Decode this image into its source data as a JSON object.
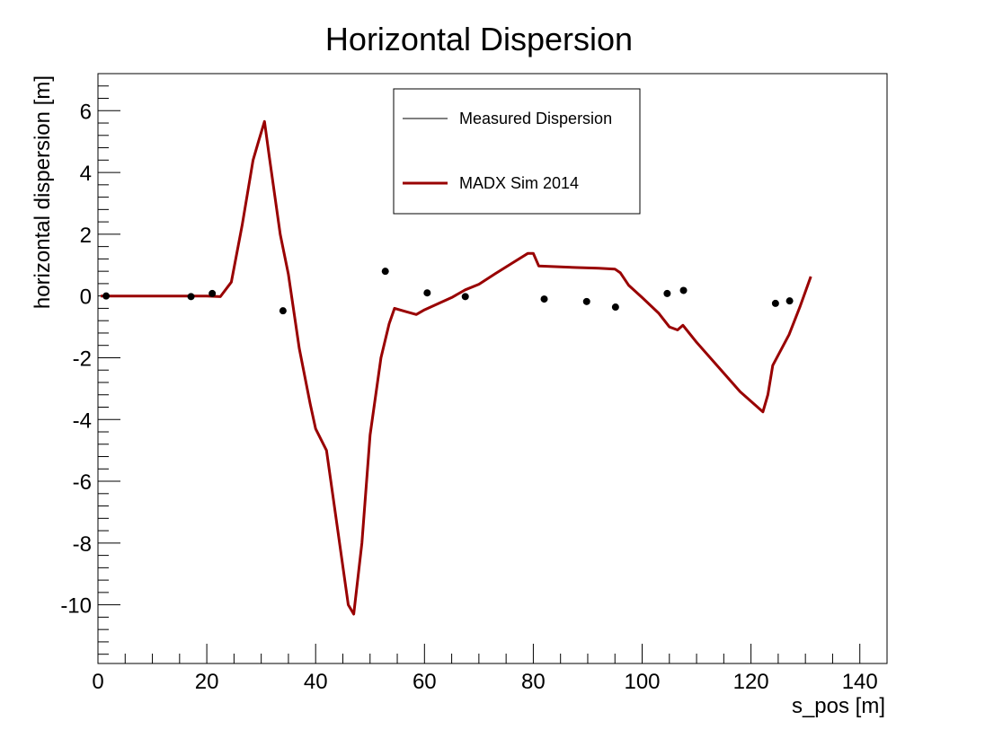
{
  "chart_data": {
    "type": "line",
    "title": "Horizontal Dispersion",
    "xlabel": "s_pos [m]",
    "ylabel": "horizontal dispersion [m]",
    "xlim": [
      0,
      145
    ],
    "ylim": [
      -11.9,
      7.2
    ],
    "x_ticks": [
      0,
      20,
      40,
      60,
      80,
      100,
      120,
      140
    ],
    "y_ticks": [
      -10,
      -8,
      -6,
      -4,
      -2,
      0,
      2,
      4,
      6
    ],
    "legend_position": "top-center",
    "grid": false,
    "series": [
      {
        "name": "Measured Dispersion",
        "style": "markers",
        "legend_style": "line",
        "color": "#000000",
        "x": [
          1.5,
          17.1,
          21.0,
          34.0,
          52.8,
          60.5,
          67.5,
          82.0,
          89.8,
          95.1,
          104.6,
          107.6,
          124.5,
          127.1
        ],
        "y": [
          0.0,
          -0.02,
          0.08,
          -0.48,
          0.8,
          0.1,
          -0.02,
          -0.1,
          -0.18,
          -0.36,
          0.08,
          0.18,
          -0.24,
          -0.16
        ]
      },
      {
        "name": "MADX Sim 2014",
        "style": "line",
        "color": "#990000",
        "x": [
          0.5,
          4,
          8,
          12,
          16,
          20,
          22.5,
          24.5,
          26.5,
          28.5,
          29.5,
          30.6,
          31.5,
          33.5,
          35.0,
          37.0,
          39.0,
          40.0,
          42.0,
          44.0,
          46.0,
          47.0,
          48.5,
          50.0,
          52.0,
          53.5,
          54.5,
          56.5,
          58.5,
          60.0,
          62.5,
          65.0,
          67.5,
          70.0,
          73.0,
          76.0,
          79.0,
          80.0,
          81.0,
          84.0,
          88.0,
          92.0,
          95.0,
          96.0,
          97.5,
          100.0,
          103.0,
          105.0,
          106.5,
          107.5,
          110.0,
          114.0,
          118.0,
          122.2,
          123.1,
          124.0,
          127.0,
          129.0,
          131.0
        ],
        "y": [
          0.0,
          0.0,
          0.0,
          0.0,
          0.0,
          0.0,
          -0.02,
          0.45,
          2.3,
          4.4,
          5.0,
          5.65,
          4.5,
          2.0,
          0.7,
          -1.7,
          -3.5,
          -4.3,
          -5.0,
          -7.5,
          -10.0,
          -10.3,
          -8.0,
          -4.5,
          -2.0,
          -0.9,
          -0.4,
          -0.5,
          -0.6,
          -0.45,
          -0.25,
          -0.05,
          0.2,
          0.38,
          0.72,
          1.05,
          1.38,
          1.38,
          0.97,
          0.95,
          0.92,
          0.9,
          0.87,
          0.75,
          0.35,
          -0.05,
          -0.55,
          -1.0,
          -1.1,
          -0.95,
          -1.5,
          -2.3,
          -3.1,
          -3.75,
          -3.2,
          -2.25,
          -1.25,
          -0.35,
          0.63
        ]
      }
    ]
  }
}
